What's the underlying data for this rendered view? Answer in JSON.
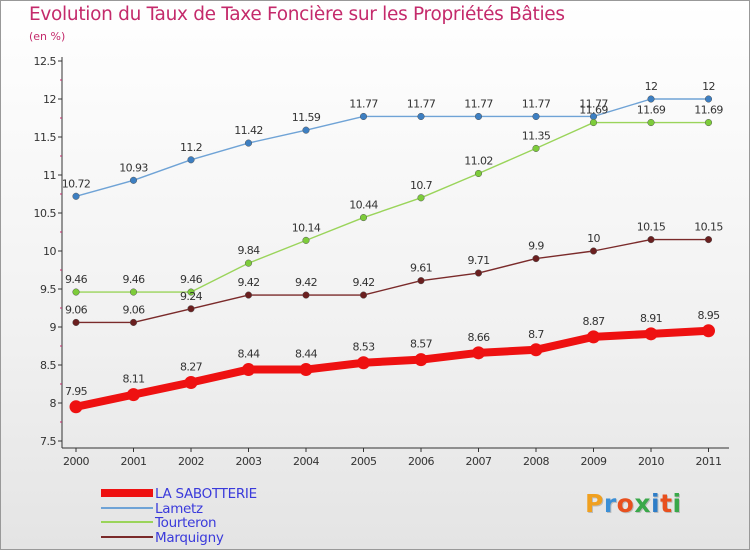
{
  "title": "Evolution du Taux de Taxe Foncière sur les Propriétés Bâties",
  "subtitle": "(en %)",
  "logo": {
    "text": "Proxiti",
    "colors": [
      "#f0a020",
      "#3b8fd6",
      "#e8501e",
      "#3aa84a",
      "#2e7dc7",
      "#e8501e",
      "#3aa84a"
    ]
  },
  "chart_data": {
    "type": "line",
    "x": [
      "2000",
      "2001",
      "2002",
      "2003",
      "2004",
      "2005",
      "2006",
      "2007",
      "2008",
      "2009",
      "2010",
      "2011"
    ],
    "ylim": [
      7.5,
      12.5
    ],
    "yticks": [
      "7.5",
      "8",
      "8.5",
      "9",
      "9.5",
      "10",
      "10.5",
      "11",
      "11.5",
      "12",
      "12.5"
    ],
    "grid": false,
    "legend_position": "bottom-left",
    "series": [
      {
        "name": "LA SABOTTERIE",
        "color": "#ee1111",
        "marker_color": "#ee1111",
        "bold": true,
        "values": [
          7.95,
          8.11,
          8.27,
          8.44,
          8.44,
          8.53,
          8.57,
          8.66,
          8.7,
          8.87,
          8.91,
          8.95
        ],
        "labels": [
          "7.95",
          "8.11",
          "8.27",
          "8.44",
          "8.44",
          "8.53",
          "8.57",
          "8.66",
          "8.7",
          "8.87",
          "8.91",
          "8.95"
        ]
      },
      {
        "name": "Lametz",
        "color": "#6fa3d6",
        "marker_color": "#3d7fc2",
        "bold": false,
        "values": [
          10.72,
          10.93,
          11.2,
          11.42,
          11.59,
          11.77,
          11.77,
          11.77,
          11.77,
          11.77,
          12,
          12
        ],
        "labels": [
          "10.72",
          "10.93",
          "11.2",
          "11.42",
          "11.59",
          "11.77",
          "11.77",
          "11.77",
          "11.77",
          "11.77",
          "12",
          "12"
        ]
      },
      {
        "name": "Tourteron",
        "color": "#9ad45a",
        "marker_color": "#7dcc3a",
        "bold": false,
        "values": [
          9.46,
          9.46,
          9.46,
          9.84,
          10.14,
          10.44,
          10.7,
          11.02,
          11.35,
          11.69,
          11.69,
          11.69
        ],
        "labels": [
          "9.46",
          "9.46",
          "9.46",
          "9.84",
          "10.14",
          "10.44",
          "10.7",
          "11.02",
          "11.35",
          "11.69",
          "11.69",
          "11.69"
        ]
      },
      {
        "name": "Marquigny",
        "color": "#7a2a2a",
        "marker_color": "#6a1f1f",
        "bold": false,
        "values": [
          9.06,
          9.06,
          9.24,
          9.42,
          9.42,
          9.42,
          9.61,
          9.71,
          9.9,
          10,
          10.15,
          10.15
        ],
        "labels": [
          "9.06",
          "9.06",
          "9.24",
          "9.42",
          "9.42",
          "9.42",
          "9.61",
          "9.71",
          "9.9",
          "10",
          "10.15",
          "10.15"
        ]
      }
    ]
  }
}
